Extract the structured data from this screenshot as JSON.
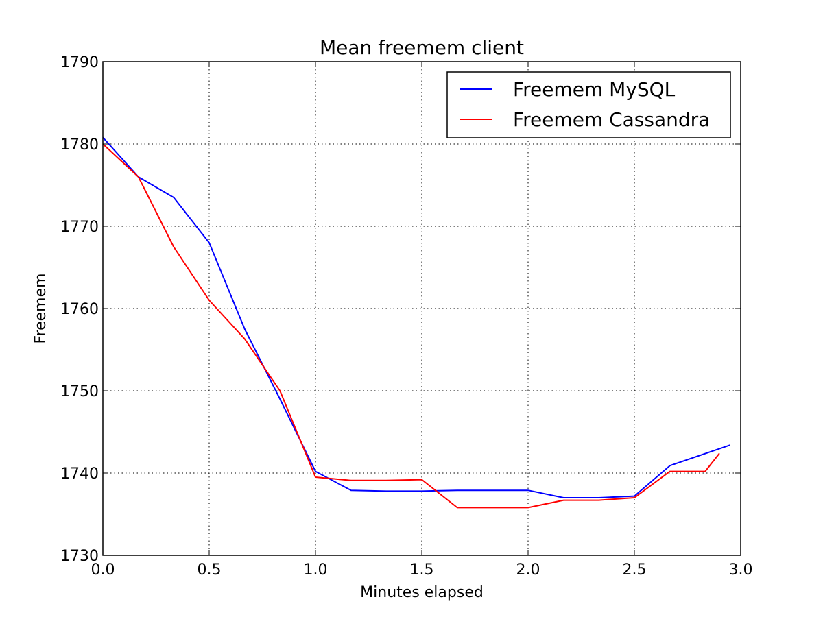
{
  "chart_data": {
    "type": "line",
    "title": "Mean freemem client",
    "xlabel": "Minutes elapsed",
    "ylabel": "Freemem",
    "xlim": [
      0.0,
      3.0
    ],
    "ylim": [
      1730,
      1790
    ],
    "xticks": [
      "0.0",
      "0.5",
      "1.0",
      "1.5",
      "2.0",
      "2.5",
      "3.0"
    ],
    "xtick_values": [
      0.0,
      0.5,
      1.0,
      1.5,
      2.0,
      2.5,
      3.0
    ],
    "yticks": [
      "1730",
      "1740",
      "1750",
      "1760",
      "1770",
      "1780",
      "1790"
    ],
    "ytick_values": [
      1730,
      1740,
      1750,
      1760,
      1770,
      1780,
      1790
    ],
    "grid": true,
    "legend_position": "top-right",
    "series": [
      {
        "name": "Freemem MySQL",
        "color": "#0000ff",
        "x": [
          0.0,
          0.167,
          0.333,
          0.5,
          0.667,
          0.833,
          1.0,
          1.167,
          1.333,
          1.5,
          1.667,
          1.833,
          2.0,
          2.167,
          2.333,
          2.5,
          2.667,
          2.95
        ],
        "y": [
          1780.8,
          1776.0,
          1773.5,
          1768.0,
          1757.5,
          1749.0,
          1740.2,
          1737.9,
          1737.8,
          1737.8,
          1737.9,
          1737.9,
          1737.9,
          1737.0,
          1737.0,
          1737.2,
          1740.9,
          1743.4
        ]
      },
      {
        "name": "Freemem Cassandra",
        "color": "#ff0000",
        "x": [
          0.0,
          0.167,
          0.333,
          0.5,
          0.667,
          0.833,
          1.0,
          1.167,
          1.333,
          1.5,
          1.667,
          1.833,
          2.0,
          2.167,
          2.333,
          2.5,
          2.667,
          2.833,
          2.9
        ],
        "y": [
          1780.0,
          1776.0,
          1767.5,
          1761.0,
          1756.3,
          1750.0,
          1739.5,
          1739.1,
          1739.1,
          1739.2,
          1735.8,
          1735.8,
          1735.8,
          1736.7,
          1736.7,
          1737.0,
          1740.2,
          1740.2,
          1742.4
        ]
      }
    ]
  }
}
